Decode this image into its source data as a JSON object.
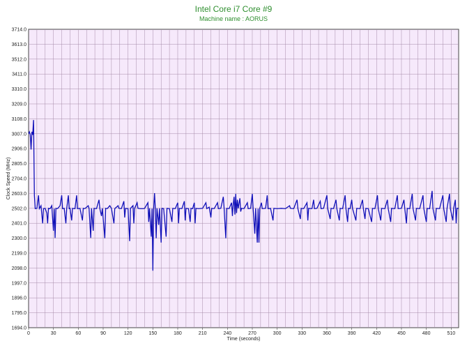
{
  "chart_data": {
    "type": "line",
    "title": "Intel Core i7 Core #9",
    "subtitle": "Machine name : AORUS",
    "xlabel": "Time (seconds)",
    "ylabel": "Clock Speed (MHz)",
    "xlim": [
      0,
      519
    ],
    "ylim": [
      1694.0,
      3714.0
    ],
    "grid": true,
    "x_ticks": [
      0,
      30,
      60,
      90,
      120,
      150,
      180,
      210,
      240,
      270,
      300,
      330,
      360,
      390,
      420,
      450,
      480,
      510
    ],
    "y_ticks": [
      "3714.0",
      "3613.0",
      "3512.0",
      "3411.0",
      "3310.0",
      "3209.0",
      "3108.0",
      "3007.0",
      "2906.0",
      "2805.0",
      "2704.0",
      "2603.0",
      "2502.0",
      "2401.0",
      "2300.0",
      "2199.0",
      "2098.0",
      "1997.0",
      "1896.0",
      "1795.0",
      "1694.0"
    ],
    "colors": {
      "background": "#f6e9fb",
      "grid": "#a58aa8",
      "line": "#1010b8",
      "title": "#2f8f2f"
    },
    "series": [
      {
        "baseline": 2502,
        "points": [
          [
            0,
            3007
          ],
          [
            1,
            3020
          ],
          [
            2,
            3000
          ],
          [
            3,
            2900
          ],
          [
            4,
            3020
          ],
          [
            5,
            3000
          ],
          [
            6,
            3100
          ],
          [
            7,
            2590
          ],
          [
            8,
            2500
          ],
          [
            10,
            2502
          ],
          [
            12,
            2590
          ],
          [
            13,
            2500
          ],
          [
            15,
            2520
          ],
          [
            17,
            2400
          ],
          [
            18,
            2500
          ],
          [
            20,
            2502
          ],
          [
            22,
            2470
          ],
          [
            23,
            2400
          ],
          [
            24,
            2502
          ],
          [
            26,
            2500
          ],
          [
            28,
            2520
          ],
          [
            30,
            2350
          ],
          [
            31,
            2500
          ],
          [
            32,
            2302
          ],
          [
            33,
            2502
          ],
          [
            35,
            2500
          ],
          [
            38,
            2520
          ],
          [
            40,
            2590
          ],
          [
            41,
            2500
          ],
          [
            43,
            2502
          ],
          [
            45,
            2400
          ],
          [
            46,
            2500
          ],
          [
            48,
            2590
          ],
          [
            49,
            2500
          ],
          [
            50,
            2502
          ],
          [
            52,
            2420
          ],
          [
            53,
            2502
          ],
          [
            56,
            2500
          ],
          [
            58,
            2590
          ],
          [
            59,
            2500
          ],
          [
            62,
            2502
          ],
          [
            65,
            2420
          ],
          [
            66,
            2502
          ],
          [
            68,
            2500
          ],
          [
            72,
            2520
          ],
          [
            73,
            2500
          ],
          [
            75,
            2302
          ],
          [
            76,
            2502
          ],
          [
            78,
            2350
          ],
          [
            79,
            2502
          ],
          [
            82,
            2500
          ],
          [
            85,
            2560
          ],
          [
            86,
            2500
          ],
          [
            88,
            2450
          ],
          [
            89,
            2502
          ],
          [
            92,
            2300
          ],
          [
            93,
            2502
          ],
          [
            95,
            2500
          ],
          [
            98,
            2520
          ],
          [
            100,
            2502
          ],
          [
            103,
            2400
          ],
          [
            104,
            2500
          ],
          [
            108,
            2520
          ],
          [
            109,
            2502
          ],
          [
            112,
            2500
          ],
          [
            115,
            2550
          ],
          [
            116,
            2440
          ],
          [
            117,
            2502
          ],
          [
            120,
            2500
          ],
          [
            122,
            2280
          ],
          [
            123,
            2502
          ],
          [
            126,
            2520
          ],
          [
            127,
            2400
          ],
          [
            128,
            2502
          ],
          [
            131,
            2540
          ],
          [
            132,
            2502
          ],
          [
            135,
            2500
          ],
          [
            139,
            2500
          ],
          [
            140,
            2502
          ],
          [
            144,
            2540
          ],
          [
            145,
            2410
          ],
          [
            146,
            2502
          ],
          [
            148,
            2310
          ],
          [
            149,
            2500
          ],
          [
            150,
            2080
          ],
          [
            151,
            2502
          ],
          [
            152,
            2605
          ],
          [
            153,
            2500
          ],
          [
            154,
            2300
          ],
          [
            155,
            2502
          ],
          [
            157,
            2390
          ],
          [
            158,
            2502
          ],
          [
            160,
            2270
          ],
          [
            161,
            2502
          ],
          [
            163,
            2500
          ],
          [
            166,
            2310
          ],
          [
            167,
            2502
          ],
          [
            170,
            2500
          ],
          [
            173,
            2410
          ],
          [
            174,
            2502
          ],
          [
            177,
            2500
          ],
          [
            180,
            2540
          ],
          [
            181,
            2400
          ],
          [
            182,
            2502
          ],
          [
            185,
            2500
          ],
          [
            188,
            2550
          ],
          [
            189,
            2420
          ],
          [
            190,
            2502
          ],
          [
            193,
            2500
          ],
          [
            195,
            2410
          ],
          [
            196,
            2502
          ],
          [
            198,
            2500
          ],
          [
            200,
            2540
          ],
          [
            201,
            2400
          ],
          [
            202,
            2502
          ],
          [
            205,
            2500
          ],
          [
            210,
            2502
          ],
          [
            214,
            2540
          ],
          [
            215,
            2500
          ],
          [
            218,
            2510
          ],
          [
            220,
            2440
          ],
          [
            221,
            2502
          ],
          [
            224,
            2500
          ],
          [
            228,
            2540
          ],
          [
            229,
            2500
          ],
          [
            232,
            2502
          ],
          [
            235,
            2580
          ],
          [
            236,
            2500
          ],
          [
            238,
            2300
          ],
          [
            239,
            2502
          ],
          [
            242,
            2500
          ],
          [
            245,
            2540
          ],
          [
            246,
            2450
          ],
          [
            247,
            2530
          ],
          [
            248,
            2580
          ],
          [
            249,
            2460
          ],
          [
            250,
            2600
          ],
          [
            251,
            2470
          ],
          [
            252,
            2560
          ],
          [
            253,
            2502
          ],
          [
            255,
            2570
          ],
          [
            256,
            2480
          ],
          [
            257,
            2502
          ],
          [
            260,
            2500
          ],
          [
            264,
            2540
          ],
          [
            265,
            2500
          ],
          [
            268,
            2502
          ],
          [
            270,
            2600
          ],
          [
            271,
            2500
          ],
          [
            273,
            2330
          ],
          [
            274,
            2502
          ],
          [
            276,
            2270
          ],
          [
            277,
            2500
          ],
          [
            278,
            2270
          ],
          [
            279,
            2502
          ],
          [
            281,
            2540
          ],
          [
            282,
            2500
          ],
          [
            286,
            2502
          ],
          [
            288,
            2590
          ],
          [
            289,
            2500
          ],
          [
            292,
            2502
          ],
          [
            295,
            2420
          ],
          [
            296,
            2502
          ],
          [
            300,
            2500
          ],
          [
            305,
            2502
          ],
          [
            310,
            2500
          ],
          [
            315,
            2520
          ],
          [
            316,
            2502
          ],
          [
            320,
            2500
          ],
          [
            324,
            2560
          ],
          [
            325,
            2500
          ],
          [
            328,
            2430
          ],
          [
            329,
            2502
          ],
          [
            332,
            2500
          ],
          [
            336,
            2540
          ],
          [
            337,
            2420
          ],
          [
            338,
            2502
          ],
          [
            342,
            2500
          ],
          [
            344,
            2560
          ],
          [
            345,
            2500
          ],
          [
            348,
            2502
          ],
          [
            352,
            2550
          ],
          [
            353,
            2500
          ],
          [
            356,
            2502
          ],
          [
            360,
            2590
          ],
          [
            361,
            2500
          ],
          [
            364,
            2430
          ],
          [
            365,
            2502
          ],
          [
            368,
            2500
          ],
          [
            371,
            2560
          ],
          [
            372,
            2500
          ],
          [
            375,
            2420
          ],
          [
            376,
            2502
          ],
          [
            379,
            2500
          ],
          [
            382,
            2590
          ],
          [
            383,
            2500
          ],
          [
            385,
            2410
          ],
          [
            386,
            2502
          ],
          [
            388,
            2500
          ],
          [
            390,
            2560
          ],
          [
            391,
            2500
          ],
          [
            395,
            2420
          ],
          [
            396,
            2502
          ],
          [
            400,
            2500
          ],
          [
            403,
            2560
          ],
          [
            404,
            2500
          ],
          [
            406,
            2430
          ],
          [
            407,
            2502
          ],
          [
            410,
            2500
          ],
          [
            414,
            2410
          ],
          [
            415,
            2502
          ],
          [
            418,
            2500
          ],
          [
            421,
            2590
          ],
          [
            422,
            2500
          ],
          [
            425,
            2420
          ],
          [
            426,
            2502
          ],
          [
            430,
            2500
          ],
          [
            433,
            2560
          ],
          [
            434,
            2500
          ],
          [
            437,
            2410
          ],
          [
            438,
            2502
          ],
          [
            442,
            2500
          ],
          [
            445,
            2590
          ],
          [
            446,
            2500
          ],
          [
            450,
            2502
          ],
          [
            453,
            2560
          ],
          [
            454,
            2500
          ],
          [
            456,
            2400
          ],
          [
            457,
            2502
          ],
          [
            460,
            2500
          ],
          [
            463,
            2600
          ],
          [
            464,
            2500
          ],
          [
            467,
            2420
          ],
          [
            468,
            2502
          ],
          [
            472,
            2500
          ],
          [
            476,
            2590
          ],
          [
            477,
            2500
          ],
          [
            480,
            2410
          ],
          [
            481,
            2502
          ],
          [
            484,
            2500
          ],
          [
            487,
            2620
          ],
          [
            488,
            2500
          ],
          [
            491,
            2420
          ],
          [
            492,
            2502
          ],
          [
            496,
            2500
          ],
          [
            500,
            2590
          ],
          [
            501,
            2500
          ],
          [
            504,
            2410
          ],
          [
            505,
            2502
          ],
          [
            508,
            2600
          ],
          [
            509,
            2500
          ],
          [
            512,
            2420
          ],
          [
            513,
            2502
          ],
          [
            515,
            2560
          ],
          [
            516,
            2400
          ],
          [
            517,
            2502
          ],
          [
            519,
            2502
          ]
        ]
      }
    ]
  }
}
